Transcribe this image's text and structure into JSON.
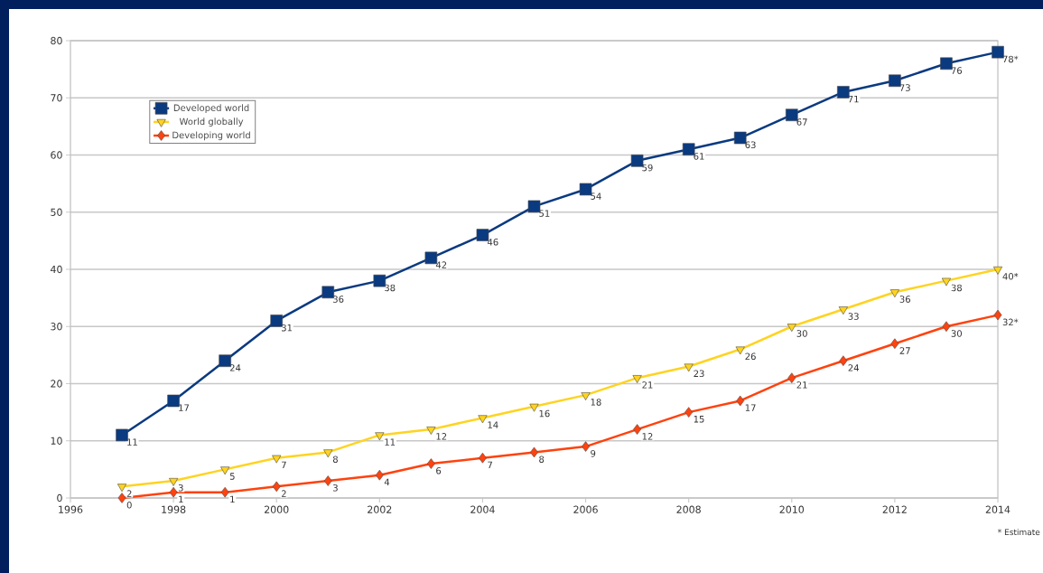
{
  "chart_data": {
    "type": "line",
    "x": [
      1997,
      1998,
      1999,
      2000,
      2001,
      2002,
      2003,
      2004,
      2005,
      2006,
      2007,
      2008,
      2009,
      2010,
      2011,
      2012,
      2013,
      2014
    ],
    "series": [
      {
        "name": "Developed world",
        "color": "#0a3a80",
        "marker": "square",
        "values": [
          11,
          17,
          24,
          31,
          36,
          38,
          42,
          46,
          51,
          54,
          59,
          61,
          63,
          67,
          71,
          73,
          76,
          78
        ],
        "value_labels": [
          "11",
          "17",
          "24",
          "31",
          "36",
          "38",
          "42",
          "46",
          "51",
          "54",
          "59",
          "61",
          "63",
          "67",
          "71",
          "73",
          "76",
          "78*"
        ]
      },
      {
        "name": "World globally",
        "color": "#ffd320",
        "marker": "triangle",
        "values": [
          2,
          3,
          5,
          7,
          8,
          11,
          12,
          14,
          16,
          18,
          21,
          23,
          26,
          30,
          33,
          36,
          38,
          40
        ],
        "value_labels": [
          "2",
          "3",
          "5",
          "7",
          "8",
          "11",
          "12",
          "14",
          "16",
          "18",
          "21",
          "23",
          "26",
          "30",
          "33",
          "36",
          "38",
          "40*"
        ]
      },
      {
        "name": "Developing world",
        "color": "#ff420e",
        "marker": "diamond",
        "values": [
          0,
          1,
          1,
          2,
          3,
          4,
          6,
          7,
          8,
          9,
          12,
          15,
          17,
          21,
          24,
          27,
          30,
          32
        ],
        "value_labels": [
          "0",
          "1",
          "1",
          "2",
          "3",
          "4",
          "6",
          "7",
          "8",
          "9",
          "12",
          "15",
          "17",
          "21",
          "24",
          "27",
          "30",
          "32*"
        ]
      }
    ],
    "xlim": [
      1996,
      2014
    ],
    "xticks": [
      1996,
      1998,
      2000,
      2002,
      2004,
      2006,
      2008,
      2010,
      2012,
      2014
    ],
    "ylim": [
      0,
      80
    ],
    "yticks": [
      0,
      10,
      20,
      30,
      40,
      50,
      60,
      70,
      80
    ],
    "grid": "y",
    "legend": "top left",
    "line_style": "solid",
    "annotations": [
      "* Estimate"
    ]
  }
}
